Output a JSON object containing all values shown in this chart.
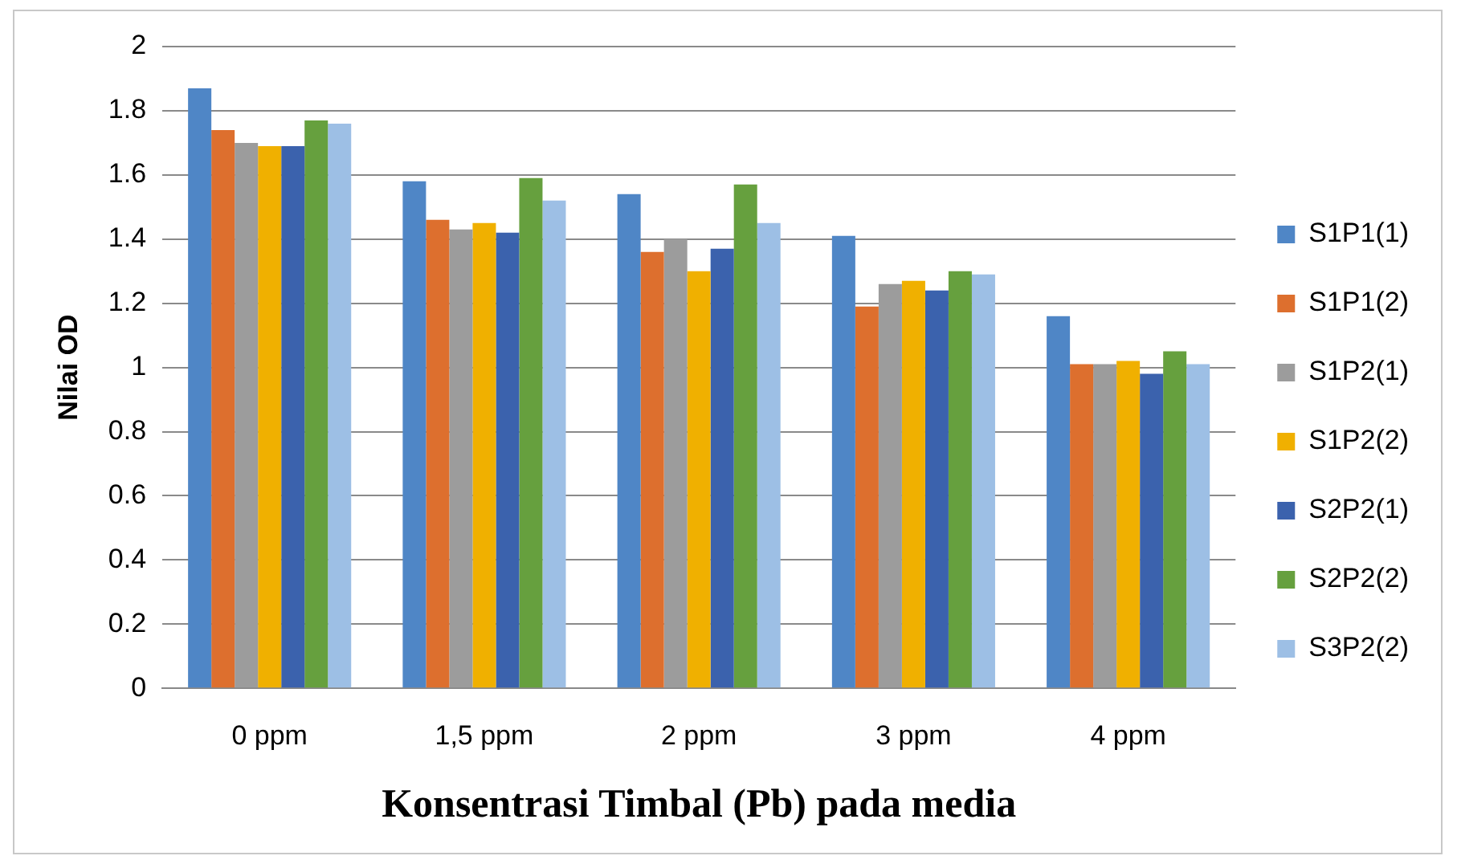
{
  "chart_data": {
    "type": "bar",
    "xlabel": "Konsentrasi Timbal (Pb) pada media",
    "ylabel": "Nilai OD",
    "categories": [
      "0 ppm",
      "1,5 ppm",
      "2 ppm",
      "3 ppm",
      "4 ppm"
    ],
    "series": [
      {
        "name": "S1P1(1)",
        "color": "#4f86c6",
        "values": [
          1.87,
          1.58,
          1.54,
          1.41,
          1.16
        ]
      },
      {
        "name": "S1P1(2)",
        "color": "#dd6f2e",
        "values": [
          1.74,
          1.46,
          1.36,
          1.19,
          1.01
        ]
      },
      {
        "name": "S1P2(1)",
        "color": "#9c9c9c",
        "values": [
          1.7,
          1.43,
          1.4,
          1.26,
          1.01
        ]
      },
      {
        "name": "S1P2(2)",
        "color": "#f0b000",
        "values": [
          1.69,
          1.45,
          1.3,
          1.27,
          1.02
        ]
      },
      {
        "name": "S2P2(1)",
        "color": "#3b62ad",
        "values": [
          1.69,
          1.42,
          1.37,
          1.24,
          0.98
        ]
      },
      {
        "name": "S2P2(2)",
        "color": "#66a03e",
        "values": [
          1.77,
          1.59,
          1.57,
          1.3,
          1.05
        ]
      },
      {
        "name": "S3P2(2)",
        "color": "#9dbfe5",
        "values": [
          1.76,
          1.52,
          1.45,
          1.29,
          1.01
        ]
      }
    ],
    "ylim": [
      0,
      2
    ],
    "yticks": [
      0,
      0.2,
      0.4,
      0.6,
      0.8,
      1,
      1.2,
      1.4,
      1.6,
      1.8,
      2
    ],
    "grid": "y",
    "legend": "right"
  }
}
